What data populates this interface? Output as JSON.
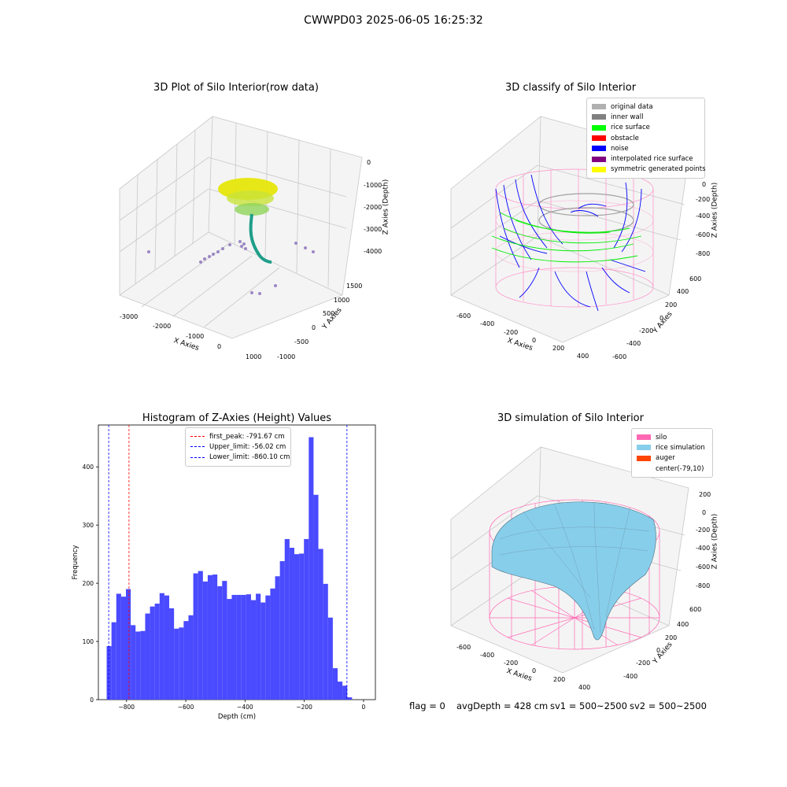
{
  "title": "CWWPD03 2025-06-05 16:25:32",
  "panels": {
    "raw": {
      "title": "3D Plot of Silo Interior(row data)",
      "xlabel": "X Axies",
      "ylabel": "Y Axies",
      "zlabel": "Z Axies (Depth)",
      "xticks": [
        "-3000",
        "-2000",
        "-1000",
        "0",
        "1000"
      ],
      "yticks": [
        "-1000",
        "-500",
        "0",
        "500",
        "1000",
        "1500"
      ],
      "zticks": [
        "0",
        "-1000",
        "-2000",
        "-3000",
        "-4000"
      ]
    },
    "classify": {
      "title": "3D classify of Silo Interior",
      "xlabel": "X Axies",
      "ylabel": "Y Axies",
      "zlabel": "Z Axies (Depth)",
      "xticks": [
        "-600",
        "-400",
        "-200",
        "0",
        "200",
        "400"
      ],
      "yticks": [
        "-600",
        "-400",
        "-200",
        "0",
        "200",
        "400",
        "600"
      ],
      "zticks": [
        "0",
        "-200",
        "-400",
        "-600",
        "-800"
      ],
      "legend": [
        {
          "label": "original data",
          "color": "#b0b0b0"
        },
        {
          "label": "inner wall",
          "color": "#808080"
        },
        {
          "label": "rice surface",
          "color": "#00ff00"
        },
        {
          "label": "obstacle",
          "color": "#ff0000"
        },
        {
          "label": "noise",
          "color": "#0000ff"
        },
        {
          "label": "interpolated rice surface",
          "color": "#800080"
        },
        {
          "label": "symmetric generated points",
          "color": "#ffff00"
        }
      ]
    },
    "simulation": {
      "title": "3D simulation of Silo Interior",
      "xlabel": "X Axies",
      "ylabel": "Y Axies",
      "zlabel": "Z Axies (Depth)",
      "xticks": [
        "-600",
        "-400",
        "-200",
        "0",
        "200",
        "400"
      ],
      "yticks": [
        "-400",
        "-200",
        "0",
        "200",
        "400",
        "600"
      ],
      "zticks": [
        "200",
        "0",
        "-200",
        "-400",
        "-600",
        "-800"
      ],
      "legend": [
        {
          "label": "silo",
          "color": "#ff69b4"
        },
        {
          "label": "rice simulation",
          "color": "#87ceeb"
        },
        {
          "label": "auger",
          "color": "#ff4500"
        },
        {
          "label": "center(-79,10)",
          "color": "#ffffff"
        }
      ]
    }
  },
  "footer": {
    "flag": "flag = 0",
    "avg_depth": "avgDepth = 428 cm",
    "sv1": "sv1 = 500~2500",
    "sv2": "sv2 = 500~2500"
  },
  "chart_data": [
    {
      "type": "bar",
      "title": "Histogram of Z-Axies (Height) Values",
      "xlabel": "Depth (cm)",
      "ylabel": "Frequency",
      "xlim": [
        -895,
        40
      ],
      "ylim": [
        0,
        472
      ],
      "xticks": [
        -800,
        -600,
        -400,
        -200,
        0
      ],
      "yticks": [
        0,
        100,
        200,
        300,
        400
      ],
      "bar_color": "#4a4aff",
      "bin_start": -867,
      "bin_width": 16.24,
      "values": [
        92,
        133,
        182,
        177,
        190,
        128,
        117,
        118,
        148,
        160,
        165,
        183,
        179,
        157,
        122,
        124,
        135,
        145,
        217,
        221,
        203,
        214,
        215,
        195,
        204,
        173,
        180,
        180,
        180,
        181,
        171,
        182,
        167,
        179,
        191,
        212,
        238,
        276,
        261,
        250,
        251,
        276,
        451,
        352,
        259,
        199,
        141,
        54,
        31,
        24,
        4
      ],
      "lines": [
        {
          "label": "first_peak: -791.67 cm",
          "x": -791.67,
          "color": "#ff0000"
        },
        {
          "label": "Upper_limit: -56.02 cm",
          "x": -56.02,
          "color": "#0000ff"
        },
        {
          "label": "Lower_limit: -860.10 cm",
          "x": -860.1,
          "color": "#0000ff"
        }
      ]
    }
  ]
}
